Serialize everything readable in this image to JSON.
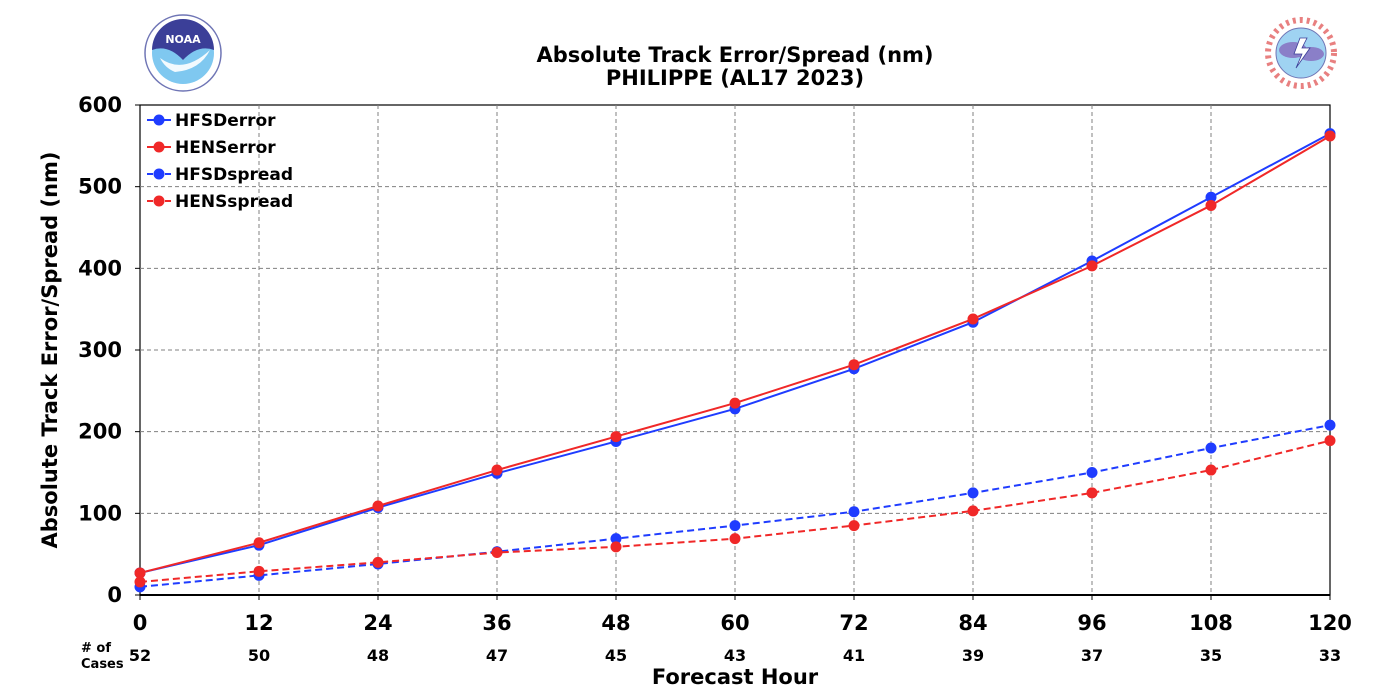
{
  "logos": {
    "left": {
      "text": "NOAA",
      "icon": "noaa-logo-icon"
    },
    "right": {
      "text": "NATIONAL WEATHER SERVICE",
      "icon": "nws-logo-icon"
    }
  },
  "cases": {
    "header_line1": "# of",
    "header_line2": "Cases",
    "values": [
      52,
      50,
      48,
      47,
      45,
      43,
      41,
      39,
      37,
      35,
      33
    ]
  },
  "chart_data": {
    "type": "line",
    "title": "Absolute Track Error/Spread (nm)",
    "subtitle": "PHILIPPE (AL17 2023)",
    "xlabel": "Forecast Hour",
    "ylabel": "Absolute Track Error/Spread (nm)",
    "x": [
      0,
      12,
      24,
      36,
      48,
      60,
      72,
      84,
      96,
      108,
      120
    ],
    "xlim": [
      0,
      120
    ],
    "ylim": [
      0,
      600
    ],
    "yticks": [
      0,
      100,
      200,
      300,
      400,
      500,
      600
    ],
    "grid": true,
    "legend_position": "top-left",
    "series": [
      {
        "name": "HFSDerror",
        "color": "#1f3cff",
        "dashed": false,
        "values": [
          27,
          61,
          107,
          149,
          188,
          228,
          277,
          334,
          409,
          487,
          565
        ]
      },
      {
        "name": "HENSerror",
        "color": "#f02828",
        "dashed": false,
        "values": [
          27,
          64,
          109,
          153,
          194,
          235,
          282,
          338,
          403,
          477,
          562
        ]
      },
      {
        "name": "HFSDspread",
        "color": "#1f3cff",
        "dashed": true,
        "values": [
          10,
          24,
          38,
          53,
          69,
          85,
          102,
          125,
          150,
          180,
          208
        ]
      },
      {
        "name": "HENSspread",
        "color": "#f02828",
        "dashed": true,
        "values": [
          16,
          29,
          40,
          52,
          59,
          69,
          85,
          103,
          125,
          153,
          189
        ]
      }
    ]
  }
}
